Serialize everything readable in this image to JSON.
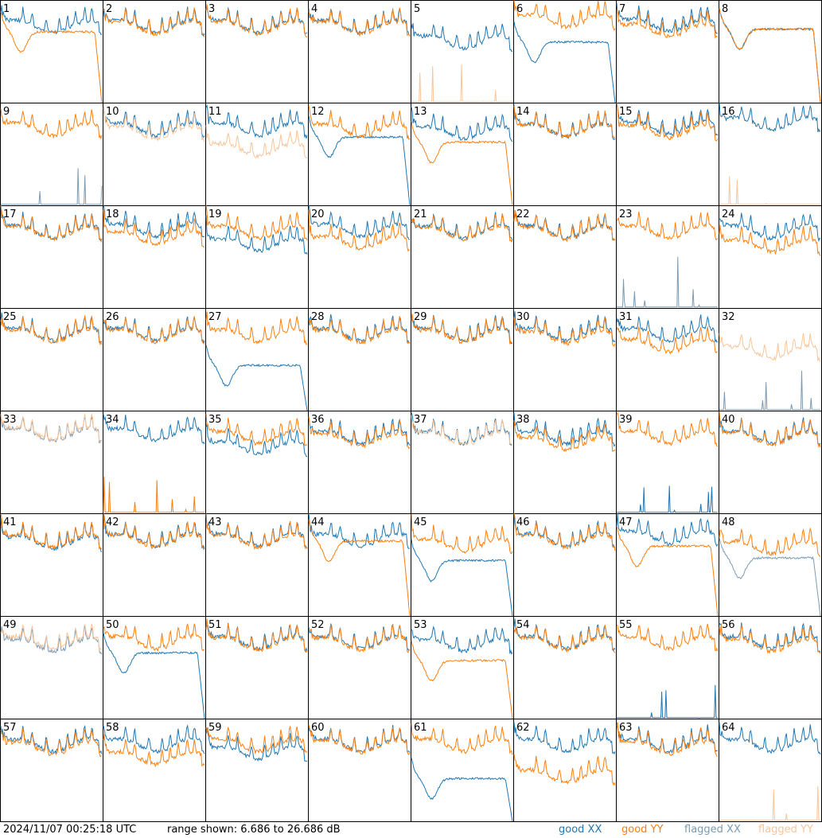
{
  "footer": {
    "timestamp": "2024/11/07 00:25:18 UTC",
    "range_text": "range shown: 6.686 to 26.686 dB"
  },
  "legend": [
    {
      "label": "good XX",
      "color": "#1f77b4"
    },
    {
      "label": "good YY",
      "color": "#ff7f0e"
    },
    {
      "label": "flagged XX",
      "color": "#7a9bb5"
    },
    {
      "label": "flagged YY",
      "color": "#f9c59a"
    }
  ],
  "chart_data": {
    "type": "line",
    "ylim": [
      6.686,
      26.686
    ],
    "yunit": "dB",
    "panel_labels": [
      "1",
      "2",
      "3",
      "4",
      "5",
      "6",
      "7",
      "8",
      "9",
      "10",
      "11",
      "12",
      "13",
      "14",
      "15",
      "16",
      "17",
      "18",
      "19",
      "20",
      "21",
      "22",
      "23",
      "24",
      "25",
      "26",
      "27",
      "28",
      "29",
      "30",
      "31",
      "32",
      "33",
      "34",
      "35",
      "36",
      "37",
      "38",
      "39",
      "40",
      "41",
      "42",
      "43",
      "44",
      "45",
      "46",
      "47",
      "48",
      "49",
      "50",
      "51",
      "52",
      "53",
      "54",
      "55",
      "56",
      "57",
      "58",
      "59",
      "60",
      "61",
      "62",
      "63",
      "64"
    ],
    "panels": [
      {
        "xx": {
          "f": 0,
          "s": "n",
          "l": 21.5
        },
        "yy": {
          "f": 0,
          "s": "r",
          "l": 20.5
        }
      },
      {
        "xx": {
          "f": 0,
          "s": "n",
          "l": 21.5
        },
        "yy": {
          "f": 0,
          "s": "n",
          "l": 21.3
        }
      },
      {
        "xx": {
          "f": 0,
          "s": "n",
          "l": 21.5
        },
        "yy": {
          "f": 0,
          "s": "n",
          "l": 21.3
        }
      },
      {
        "xx": {
          "f": 0,
          "s": "n",
          "l": 21.5
        },
        "yy": {
          "f": 0,
          "s": "n",
          "l": 21.3
        }
      },
      {
        "xx": {
          "f": 0,
          "s": "n",
          "l": 18.5
        },
        "yy": {
          "f": 1,
          "s": "d",
          "l": 6.7
        }
      },
      {
        "xx": {
          "f": 0,
          "s": "r",
          "l": 18.5
        },
        "yy": {
          "f": 0,
          "s": "n",
          "l": 22.6
        }
      },
      {
        "xx": {
          "f": 0,
          "s": "n",
          "l": 21.8
        },
        "yy": {
          "f": 0,
          "s": "n",
          "l": 20.8
        }
      },
      {
        "xx": {
          "f": 0,
          "s": "r",
          "l": 21.0
        },
        "yy": {
          "f": 0,
          "s": "r",
          "l": 21.0
        }
      },
      {
        "xx": {
          "f": 1,
          "s": "d",
          "l": 7.5
        },
        "yy": {
          "f": 0,
          "s": "n",
          "l": 21.5
        }
      },
      {
        "xx": {
          "f": 0,
          "s": "n",
          "l": 21.5
        },
        "yy": {
          "f": 1,
          "s": "n",
          "l": 20.8
        }
      },
      {
        "xx": {
          "f": 0,
          "s": "n",
          "l": 21.5
        },
        "yy": {
          "f": 1,
          "s": "n",
          "l": 17.5
        }
      },
      {
        "xx": {
          "f": 0,
          "s": "r",
          "l": 20.0
        },
        "yy": {
          "f": 0,
          "s": "n",
          "l": 21.3
        }
      },
      {
        "xx": {
          "f": 0,
          "s": "n",
          "l": 20.8
        },
        "yy": {
          "f": 0,
          "s": "r",
          "l": 19.0
        }
      },
      {
        "xx": {
          "f": 0,
          "s": "n",
          "l": 21.3
        },
        "yy": {
          "f": 0,
          "s": "n",
          "l": 21.3
        }
      },
      {
        "xx": {
          "f": 0,
          "s": "n",
          "l": 21.8
        },
        "yy": {
          "f": 0,
          "s": "n",
          "l": 21.0
        }
      },
      {
        "xx": {
          "f": 0,
          "s": "n",
          "l": 22.6
        },
        "yy": {
          "f": 1,
          "s": "d",
          "l": 6.7
        }
      },
      {
        "xx": {
          "f": 0,
          "s": "n",
          "l": 21.5
        },
        "yy": {
          "f": 0,
          "s": "n",
          "l": 21.3
        }
      },
      {
        "xx": {
          "f": 0,
          "s": "n",
          "l": 21.8
        },
        "yy": {
          "f": 0,
          "s": "n",
          "l": 20.3
        }
      },
      {
        "xx": {
          "f": 0,
          "s": "n",
          "l": 19.0
        },
        "yy": {
          "f": 0,
          "s": "n",
          "l": 21.5
        }
      },
      {
        "xx": {
          "f": 0,
          "s": "n",
          "l": 21.8
        },
        "yy": {
          "f": 0,
          "s": "n",
          "l": 19.5
        }
      },
      {
        "xx": {
          "f": 0,
          "s": "n",
          "l": 21.5
        },
        "yy": {
          "f": 0,
          "s": "n",
          "l": 21.3
        }
      },
      {
        "xx": {
          "f": 0,
          "s": "n",
          "l": 21.5
        },
        "yy": {
          "f": 0,
          "s": "n",
          "l": 21.3
        }
      },
      {
        "xx": {
          "f": 1,
          "s": "d",
          "l": 13.5
        },
        "yy": {
          "f": 0,
          "s": "n",
          "l": 21.5
        }
      },
      {
        "xx": {
          "f": 0,
          "s": "n",
          "l": 21.5
        },
        "yy": {
          "f": 0,
          "s": "n",
          "l": 18.8
        }
      },
      {
        "xx": {
          "f": 0,
          "s": "n",
          "l": 21.5
        },
        "yy": {
          "f": 0,
          "s": "n",
          "l": 21.3
        }
      },
      {
        "xx": {
          "f": 0,
          "s": "n",
          "l": 21.5
        },
        "yy": {
          "f": 0,
          "s": "n",
          "l": 21.3
        }
      },
      {
        "xx": {
          "f": 0,
          "s": "r",
          "l": 15.5
        },
        "yy": {
          "f": 0,
          "s": "n",
          "l": 21.3
        }
      },
      {
        "xx": {
          "f": 0,
          "s": "n",
          "l": 21.5
        },
        "yy": {
          "f": 0,
          "s": "n",
          "l": 21.3
        }
      },
      {
        "xx": {
          "f": 0,
          "s": "n",
          "l": 21.5
        },
        "yy": {
          "f": 0,
          "s": "n",
          "l": 21.3
        }
      },
      {
        "xx": {
          "f": 0,
          "s": "n",
          "l": 21.5
        },
        "yy": {
          "f": 0,
          "s": "n",
          "l": 21.0
        }
      },
      {
        "xx": {
          "f": 0,
          "s": "n",
          "l": 21.5
        },
        "yy": {
          "f": 0,
          "s": "n",
          "l": 19.3
        }
      },
      {
        "xx": {
          "f": 1,
          "s": "d",
          "l": 6.7
        },
        "yy": {
          "f": 1,
          "s": "n",
          "l": 18.0
        }
      },
      {
        "xx": {
          "f": 1,
          "s": "n",
          "l": 22.0
        },
        "yy": {
          "f": 1,
          "s": "n",
          "l": 22.2
        }
      },
      {
        "xx": {
          "f": 0,
          "s": "n",
          "l": 22.0
        },
        "yy": {
          "f": 0,
          "s": "d",
          "l": 7.2
        }
      },
      {
        "xx": {
          "f": 0,
          "s": "n",
          "l": 19.5
        },
        "yy": {
          "f": 0,
          "s": "n",
          "l": 21.5
        }
      },
      {
        "xx": {
          "f": 0,
          "s": "n",
          "l": 21.5
        },
        "yy": {
          "f": 0,
          "s": "n",
          "l": 21.0
        }
      },
      {
        "xx": {
          "f": 0,
          "s": "n",
          "l": 21.5
        },
        "yy": {
          "f": 1,
          "s": "n",
          "l": 21.3
        }
      },
      {
        "xx": {
          "f": 0,
          "s": "n",
          "l": 21.5
        },
        "yy": {
          "f": 0,
          "s": "n",
          "l": 20.3
        }
      },
      {
        "xx": {
          "f": 0,
          "s": "d",
          "l": 6.7
        },
        "yy": {
          "f": 0,
          "s": "n",
          "l": 21.5
        }
      },
      {
        "xx": {
          "f": 0,
          "s": "n",
          "l": 21.5
        },
        "yy": {
          "f": 0,
          "s": "n",
          "l": 21.3
        }
      },
      {
        "xx": {
          "f": 0,
          "s": "n",
          "l": 21.0
        },
        "yy": {
          "f": 0,
          "s": "n",
          "l": 21.3
        }
      },
      {
        "xx": {
          "f": 0,
          "s": "n",
          "l": 21.5
        },
        "yy": {
          "f": 0,
          "s": "n",
          "l": 21.3
        }
      },
      {
        "xx": {
          "f": 0,
          "s": "n",
          "l": 21.5
        },
        "yy": {
          "f": 0,
          "s": "n",
          "l": 21.3
        }
      },
      {
        "xx": {
          "f": 0,
          "s": "n",
          "l": 21.5
        },
        "yy": {
          "f": 0,
          "s": "r",
          "l": 21.3
        }
      },
      {
        "xx": {
          "f": 0,
          "s": "r",
          "l": 17.5
        },
        "yy": {
          "f": 0,
          "s": "n",
          "l": 20.5
        }
      },
      {
        "xx": {
          "f": 0,
          "s": "n",
          "l": 21.5
        },
        "yy": {
          "f": 0,
          "s": "n",
          "l": 21.3
        }
      },
      {
        "xx": {
          "f": 0,
          "s": "n",
          "l": 22.0
        },
        "yy": {
          "f": 0,
          "s": "r",
          "l": 20.3
        }
      },
      {
        "xx": {
          "f": 1,
          "s": "r",
          "l": 18.0
        },
        "yy": {
          "f": 0,
          "s": "n",
          "l": 20.0
        }
      },
      {
        "xx": {
          "f": 1,
          "s": "n",
          "l": 21.0
        },
        "yy": {
          "f": 1,
          "s": "n",
          "l": 21.5
        }
      },
      {
        "xx": {
          "f": 0,
          "s": "r",
          "l": 19.5
        },
        "yy": {
          "f": 0,
          "s": "n",
          "l": 21.5
        }
      },
      {
        "xx": {
          "f": 0,
          "s": "n",
          "l": 21.5
        },
        "yy": {
          "f": 0,
          "s": "n",
          "l": 21.3
        }
      },
      {
        "xx": {
          "f": 0,
          "s": "n",
          "l": 21.5
        },
        "yy": {
          "f": 0,
          "s": "n",
          "l": 21.3
        }
      },
      {
        "xx": {
          "f": 0,
          "s": "n",
          "l": 21.0
        },
        "yy": {
          "f": 0,
          "s": "r",
          "l": 18.0
        }
      },
      {
        "xx": {
          "f": 0,
          "s": "n",
          "l": 21.5
        },
        "yy": {
          "f": 0,
          "s": "n",
          "l": 21.3
        }
      },
      {
        "xx": {
          "f": 0,
          "s": "d",
          "l": 7.5
        },
        "yy": {
          "f": 0,
          "s": "n",
          "l": 21.5
        }
      },
      {
        "xx": {
          "f": 0,
          "s": "n",
          "l": 21.5
        },
        "yy": {
          "f": 0,
          "s": "n",
          "l": 21.0
        }
      },
      {
        "xx": {
          "f": 0,
          "s": "n",
          "l": 21.5
        },
        "yy": {
          "f": 0,
          "s": "n",
          "l": 21.0
        }
      },
      {
        "xx": {
          "f": 0,
          "s": "n",
          "l": 21.5
        },
        "yy": {
          "f": 0,
          "s": "n",
          "l": 19.0
        }
      },
      {
        "xx": {
          "f": 0,
          "s": "n",
          "l": 20.0
        },
        "yy": {
          "f": 0,
          "s": "n",
          "l": 21.5
        }
      },
      {
        "xx": {
          "f": 0,
          "s": "n",
          "l": 21.5
        },
        "yy": {
          "f": 0,
          "s": "n",
          "l": 21.3
        }
      },
      {
        "xx": {
          "f": 0,
          "s": "r",
          "l": 15.0
        },
        "yy": {
          "f": 0,
          "s": "n",
          "l": 21.5
        }
      },
      {
        "xx": {
          "f": 0,
          "s": "n",
          "l": 21.5
        },
        "yy": {
          "f": 0,
          "s": "n",
          "l": 15.5
        }
      },
      {
        "xx": {
          "f": 0,
          "s": "n",
          "l": 21.5
        },
        "yy": {
          "f": 0,
          "s": "n",
          "l": 21.0
        }
      },
      {
        "xx": {
          "f": 0,
          "s": "n",
          "l": 21.5
        },
        "yy": {
          "f": 1,
          "s": "d",
          "l": 6.7
        }
      }
    ]
  }
}
